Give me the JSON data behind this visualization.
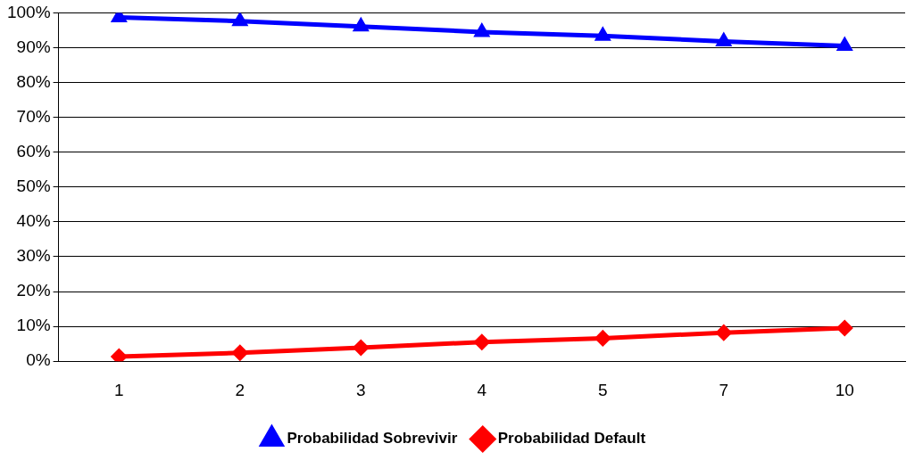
{
  "chart_data": {
    "type": "line",
    "categories": [
      "1",
      "2",
      "3",
      "4",
      "5",
      "7",
      "10"
    ],
    "series": [
      {
        "name": "Probabilidad Sobrevivir",
        "color": "#0000ff",
        "marker": "triangle",
        "values": [
          98.7,
          97.6,
          96.1,
          94.5,
          93.4,
          91.8,
          90.5
        ]
      },
      {
        "name": "Probabilidad Default",
        "color": "#ff0000",
        "marker": "diamond",
        "values": [
          1.3,
          2.4,
          3.9,
          5.5,
          6.6,
          8.2,
          9.5
        ]
      }
    ],
    "ylim": [
      0,
      100
    ],
    "yticks": [
      {
        "value": 0,
        "label": "0%"
      },
      {
        "value": 10,
        "label": "10%"
      },
      {
        "value": 20,
        "label": "20%"
      },
      {
        "value": 30,
        "label": "30%"
      },
      {
        "value": 40,
        "label": "40%"
      },
      {
        "value": 50,
        "label": "50%"
      },
      {
        "value": 60,
        "label": "60%"
      },
      {
        "value": 70,
        "label": "70%"
      },
      {
        "value": 80,
        "label": "80%"
      },
      {
        "value": 90,
        "label": "90%"
      },
      {
        "value": 100,
        "label": "100%"
      }
    ],
    "grid": "y",
    "legend": "bottom",
    "line_style": "solid"
  }
}
